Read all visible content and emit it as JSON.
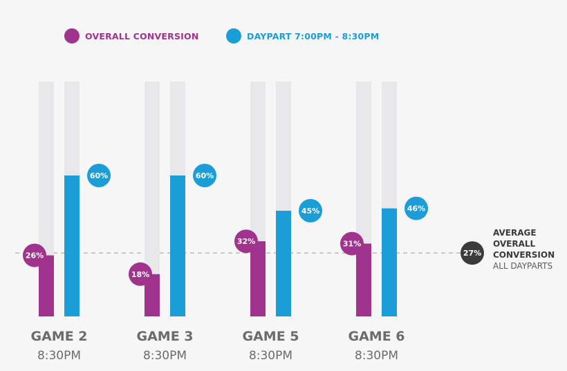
{
  "chart_data": {
    "type": "bar",
    "categories": [
      "GAME 2",
      "GAME 3",
      "GAME 5",
      "GAME 6"
    ],
    "sublabels": [
      "8:30PM",
      "8:30PM",
      "8:30PM",
      "8:30PM"
    ],
    "series": [
      {
        "name": "OVERALL CONVERSION",
        "color": "#a0338e",
        "values": [
          26,
          18,
          32,
          31
        ],
        "labels": [
          "26%",
          "18%",
          "32%",
          "31%"
        ]
      },
      {
        "name": "DAYPART 7:00PM - 8:30PM",
        "color": "#1b9ed8",
        "values": [
          60,
          60,
          45,
          46
        ],
        "labels": [
          "60%",
          "60%",
          "45%",
          "46%"
        ]
      }
    ],
    "ylim": [
      0,
      100
    ],
    "track_color": "#e8e8ea",
    "reference_line": {
      "value": 27,
      "label": "27%",
      "title_lines": [
        "AVERAGE",
        "OVERALL",
        "CONVERSION"
      ],
      "subtitle": "ALL DAYPARTS",
      "color": "#3b3b3b"
    },
    "label_color": "#6b6b6b"
  }
}
